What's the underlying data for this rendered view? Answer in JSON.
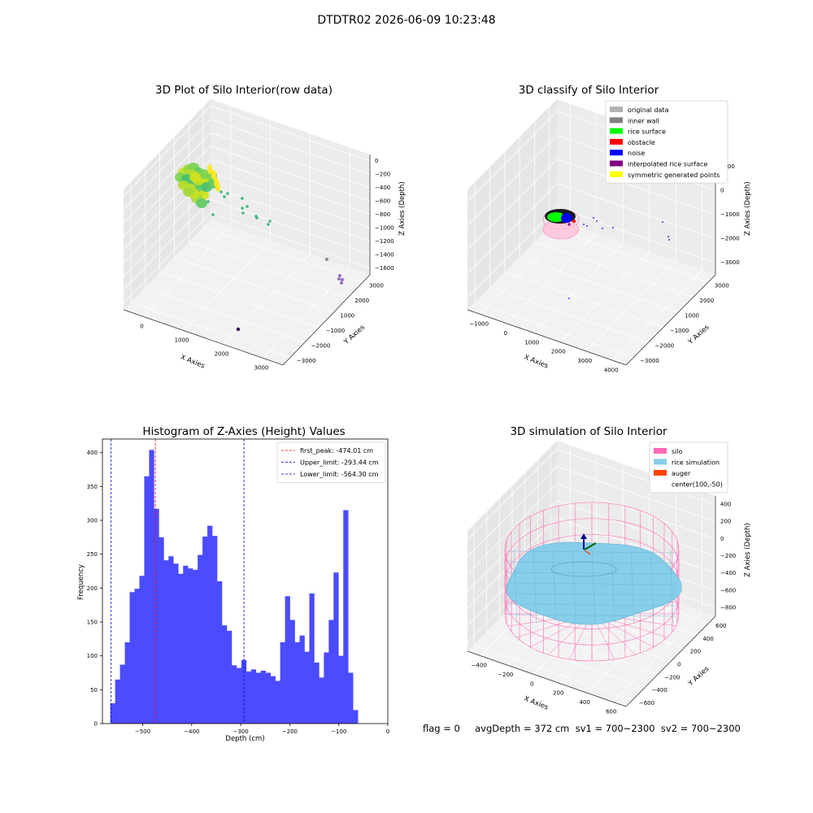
{
  "suptitle": "DTDTR02 2026-06-09 10:23:48",
  "footer": "flag = 0     avgDepth = 372 cm  sv1 = 700~2300  sv2 = 700~2300",
  "chart_data": [
    {
      "type": "scatter",
      "projection": "3d",
      "title": "3D Plot of Silo Interior(row data)",
      "xlabel": "X Axies",
      "ylabel": "Y Axies",
      "zlabel": "Z Axies (Depth)",
      "x_ticks": [
        "0",
        "1000",
        "2000",
        "3000"
      ],
      "y_ticks": [
        "3000",
        "2000",
        "1000",
        "−1000",
        "−2000",
        "−3000"
      ],
      "z_ticks": [
        "0",
        "−200",
        "−400",
        "−600",
        "−800",
        "−1000",
        "−1200",
        "−1400",
        "−1600"
      ],
      "colormap": "viridis (colored by depth)",
      "point_groups": [
        "dense surface cluster",
        "scattered points",
        "outliers"
      ]
    },
    {
      "type": "scatter",
      "projection": "3d",
      "title": "3D classify of Silo Interior",
      "xlabel": "X Axies",
      "ylabel": "Y Axies",
      "zlabel": "Z Axies (Depth)",
      "x_ticks": [
        "−1000",
        "0",
        "1000",
        "2000",
        "3000",
        "4000"
      ],
      "y_ticks": [
        "3000",
        "2000",
        "1000",
        "−1000",
        "−2000",
        "−3000"
      ],
      "z_ticks": [
        "1000",
        "0",
        "−1000",
        "−2000",
        "−3000"
      ],
      "legend": [
        {
          "label": "original data",
          "color": "#b3b3b3"
        },
        {
          "label": "inner wall",
          "color": "#808080"
        },
        {
          "label": "rice surface",
          "color": "#00ff00"
        },
        {
          "label": "obstacle",
          "color": "#ff0000"
        },
        {
          "label": "noise",
          "color": "#0000ff"
        },
        {
          "label": "interpolated rice surface",
          "color": "#800080"
        },
        {
          "label": "symmetric generated points",
          "color": "#ffff00"
        }
      ]
    },
    {
      "type": "bar",
      "title": "Histogram of Z-Axies (Height) Values",
      "xlabel": "Depth (cm)",
      "ylabel": "Frequency",
      "xlim": [
        -582,
        0
      ],
      "ylim": [
        0,
        420
      ],
      "x_ticks": [
        -500,
        -400,
        -300,
        -200,
        -100,
        0
      ],
      "y_ticks": [
        0,
        50,
        100,
        150,
        200,
        250,
        300,
        350,
        400
      ],
      "bar_color": "#4b4bff",
      "bins_start": -566,
      "bin_width": 9.9,
      "values": [
        30,
        65,
        87,
        120,
        194,
        199,
        218,
        365,
        404,
        317,
        275,
        241,
        247,
        236,
        221,
        233,
        229,
        227,
        249,
        276,
        292,
        277,
        210,
        145,
        137,
        86,
        82,
        94,
        77,
        80,
        75,
        78,
        75,
        70,
        63,
        120,
        188,
        153,
        120,
        130,
        106,
        192,
        90,
        68,
        105,
        153,
        223,
        100,
        315,
        75,
        20
      ],
      "vlines": [
        {
          "label": "first_peak: -474.01 cm",
          "value": -474.01,
          "color": "#ff0000"
        },
        {
          "label": "Upper_limit: -293.44 cm",
          "value": -293.44,
          "color": "#0000cd"
        },
        {
          "label": "Lower_limit: -564.30 cm",
          "value": -564.3,
          "color": "#0000cd"
        }
      ]
    },
    {
      "type": "surface",
      "projection": "3d",
      "title": "3D simulation of Silo Interior",
      "xlabel": "X Axies",
      "ylabel": "Y Axies",
      "zlabel": "Z Axies (Depth)",
      "x_ticks": [
        "−400",
        "−200",
        "0",
        "200",
        "400",
        "600"
      ],
      "y_ticks": [
        "600",
        "400",
        "200",
        "0",
        "−200",
        "−400",
        "−600"
      ],
      "z_ticks": [
        "400",
        "200",
        "0",
        "−200",
        "−400",
        "−600",
        "−800"
      ],
      "legend": [
        {
          "label": "silo",
          "color": "#ff69b4"
        },
        {
          "label": "rice simulation",
          "color": "#87ceeb"
        },
        {
          "label": "auger",
          "color": "#ff4500"
        },
        {
          "label": "center(100,-50)",
          "color": ""
        }
      ]
    }
  ]
}
